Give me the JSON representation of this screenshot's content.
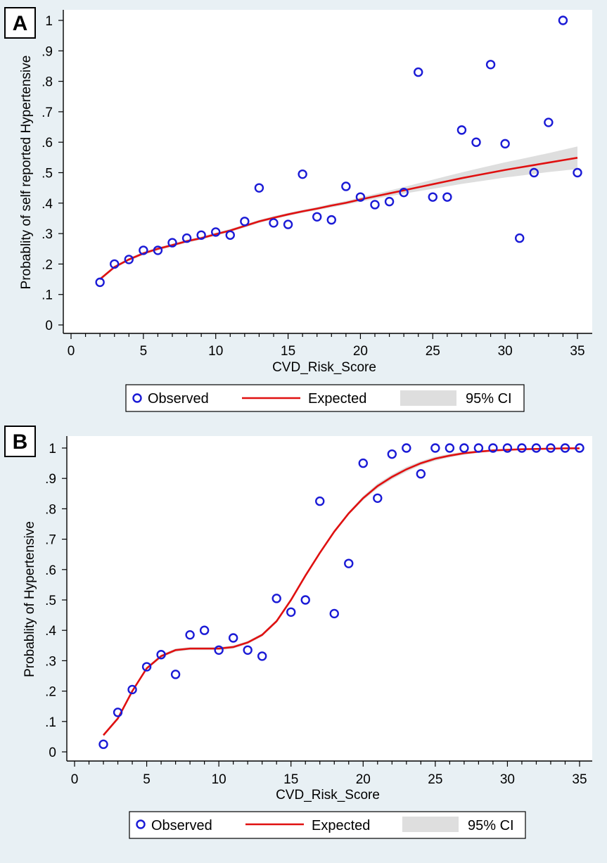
{
  "chart_data": [
    {
      "panel": "A",
      "type": "scatter",
      "xlabel": "CVD_Risk_Score",
      "ylabel": "Probablity of self reported Hypertensive",
      "xlim": [
        0,
        35
      ],
      "ylim": [
        0,
        1
      ],
      "x_ticks": [
        0,
        5,
        10,
        15,
        20,
        25,
        30,
        35
      ],
      "x_tick_labels": [
        "0",
        "5",
        "10",
        "15",
        "20",
        "25",
        "30",
        "35"
      ],
      "y_ticks": [
        0,
        0.1,
        0.2,
        0.3,
        0.4,
        0.5,
        0.6,
        0.7,
        0.8,
        0.9,
        1
      ],
      "y_tick_labels": [
        "0",
        ".1",
        ".2",
        ".3",
        ".4",
        ".5",
        ".6",
        ".7",
        ".8",
        ".9",
        "1"
      ],
      "observed": {
        "name": "Observed",
        "x": [
          2,
          3,
          4,
          5,
          6,
          7,
          8,
          9,
          10,
          11,
          12,
          13,
          14,
          15,
          16,
          17,
          18,
          19,
          20,
          21,
          22,
          23,
          24,
          25,
          26,
          27,
          28,
          29,
          30,
          31,
          32,
          33,
          34,
          35
        ],
        "y": [
          0.14,
          0.2,
          0.215,
          0.245,
          0.245,
          0.27,
          0.285,
          0.295,
          0.305,
          0.295,
          0.34,
          0.45,
          0.335,
          0.33,
          0.495,
          0.355,
          0.345,
          0.455,
          0.42,
          0.395,
          0.405,
          0.435,
          0.83,
          0.42,
          0.42,
          0.64,
          0.6,
          0.855,
          0.595,
          0.285,
          0.5,
          0.665,
          1.0,
          0.5
        ]
      },
      "expected": {
        "name": "Expected",
        "x": [
          2,
          3,
          4,
          5,
          6,
          7,
          8,
          9,
          10,
          11,
          12,
          13,
          14,
          15,
          16,
          17,
          18,
          19,
          20,
          21,
          22,
          23,
          24,
          25,
          26,
          27,
          28,
          29,
          30,
          31,
          32,
          33,
          34,
          35
        ],
        "y": [
          0.15,
          0.19,
          0.215,
          0.235,
          0.25,
          0.262,
          0.275,
          0.285,
          0.298,
          0.31,
          0.325,
          0.34,
          0.352,
          0.363,
          0.373,
          0.382,
          0.392,
          0.401,
          0.412,
          0.422,
          0.432,
          0.442,
          0.452,
          0.462,
          0.472,
          0.482,
          0.491,
          0.5,
          0.509,
          0.517,
          0.525,
          0.533,
          0.541,
          0.549
        ]
      },
      "ci": {
        "name": "95% CI",
        "lower": [
          0.145,
          0.185,
          0.21,
          0.23,
          0.245,
          0.257,
          0.27,
          0.28,
          0.293,
          0.305,
          0.32,
          0.335,
          0.347,
          0.358,
          0.368,
          0.377,
          0.386,
          0.395,
          0.405,
          0.414,
          0.423,
          0.431,
          0.439,
          0.447,
          0.455,
          0.463,
          0.47,
          0.477,
          0.484,
          0.49,
          0.496,
          0.502,
          0.507,
          0.512
        ],
        "upper": [
          0.155,
          0.195,
          0.22,
          0.24,
          0.255,
          0.267,
          0.28,
          0.29,
          0.303,
          0.315,
          0.33,
          0.345,
          0.357,
          0.368,
          0.378,
          0.387,
          0.398,
          0.407,
          0.419,
          0.43,
          0.441,
          0.453,
          0.465,
          0.477,
          0.489,
          0.501,
          0.512,
          0.523,
          0.534,
          0.544,
          0.554,
          0.564,
          0.575,
          0.586
        ]
      },
      "legend": [
        "Observed",
        "Expected",
        "95% CI"
      ]
    },
    {
      "panel": "B",
      "type": "scatter",
      "xlabel": "CVD_Risk_Score",
      "ylabel": "Probablity of Hypertensive",
      "xlim": [
        0,
        35
      ],
      "ylim": [
        0,
        1
      ],
      "x_ticks": [
        0,
        5,
        10,
        15,
        20,
        25,
        30,
        35
      ],
      "x_tick_labels": [
        "0",
        "5",
        "10",
        "15",
        "20",
        "25",
        "30",
        "35"
      ],
      "y_ticks": [
        0,
        0.1,
        0.2,
        0.3,
        0.4,
        0.5,
        0.6,
        0.7,
        0.8,
        0.9,
        1
      ],
      "y_tick_labels": [
        "0",
        ".1",
        ".2",
        ".3",
        ".4",
        ".5",
        ".6",
        ".7",
        ".8",
        ".9",
        "1"
      ],
      "observed": {
        "name": "Observed",
        "x": [
          2,
          3,
          4,
          5,
          6,
          7,
          8,
          9,
          10,
          11,
          12,
          13,
          14,
          15,
          16,
          17,
          18,
          19,
          20,
          21,
          22,
          23,
          24,
          25,
          26,
          27,
          28,
          29,
          30,
          31,
          32,
          33,
          34,
          35
        ],
        "y": [
          0.025,
          0.13,
          0.205,
          0.28,
          0.32,
          0.255,
          0.385,
          0.4,
          0.335,
          0.375,
          0.335,
          0.315,
          0.505,
          0.46,
          0.5,
          0.825,
          0.455,
          0.62,
          0.95,
          0.835,
          0.98,
          1.0,
          0.915,
          1,
          1,
          1,
          1,
          1,
          1,
          1,
          1,
          1,
          1,
          1
        ]
      },
      "expected": {
        "name": "Expected",
        "x": [
          2,
          3,
          4,
          5,
          6,
          7,
          8,
          9,
          10,
          11,
          12,
          13,
          14,
          15,
          16,
          17,
          18,
          19,
          20,
          21,
          22,
          23,
          24,
          25,
          26,
          27,
          28,
          29,
          30,
          31,
          32,
          33,
          34,
          35
        ],
        "y": [
          0.055,
          0.11,
          0.2,
          0.275,
          0.315,
          0.335,
          0.34,
          0.34,
          0.34,
          0.345,
          0.36,
          0.385,
          0.43,
          0.5,
          0.58,
          0.655,
          0.725,
          0.785,
          0.835,
          0.875,
          0.905,
          0.93,
          0.95,
          0.965,
          0.975,
          0.983,
          0.988,
          0.992,
          0.994,
          0.996,
          0.997,
          0.998,
          0.999,
          0.999
        ]
      },
      "ci": {
        "name": "95% CI",
        "lower": [
          0.05,
          0.105,
          0.195,
          0.27,
          0.31,
          0.33,
          0.335,
          0.335,
          0.335,
          0.34,
          0.355,
          0.38,
          0.425,
          0.495,
          0.575,
          0.65,
          0.72,
          0.78,
          0.828,
          0.867,
          0.897,
          0.922,
          0.943,
          0.958,
          0.969,
          0.978,
          0.984,
          0.989,
          0.992,
          0.994,
          0.996,
          0.997,
          0.998,
          0.998
        ],
        "upper": [
          0.06,
          0.115,
          0.205,
          0.28,
          0.32,
          0.34,
          0.345,
          0.345,
          0.345,
          0.35,
          0.365,
          0.39,
          0.435,
          0.505,
          0.585,
          0.66,
          0.73,
          0.79,
          0.842,
          0.883,
          0.913,
          0.938,
          0.957,
          0.972,
          0.981,
          0.988,
          0.992,
          0.995,
          0.996,
          0.998,
          0.998,
          0.999,
          1.0,
          1.0
        ]
      },
      "legend": [
        "Observed",
        "Expected",
        "95% CI"
      ]
    }
  ]
}
